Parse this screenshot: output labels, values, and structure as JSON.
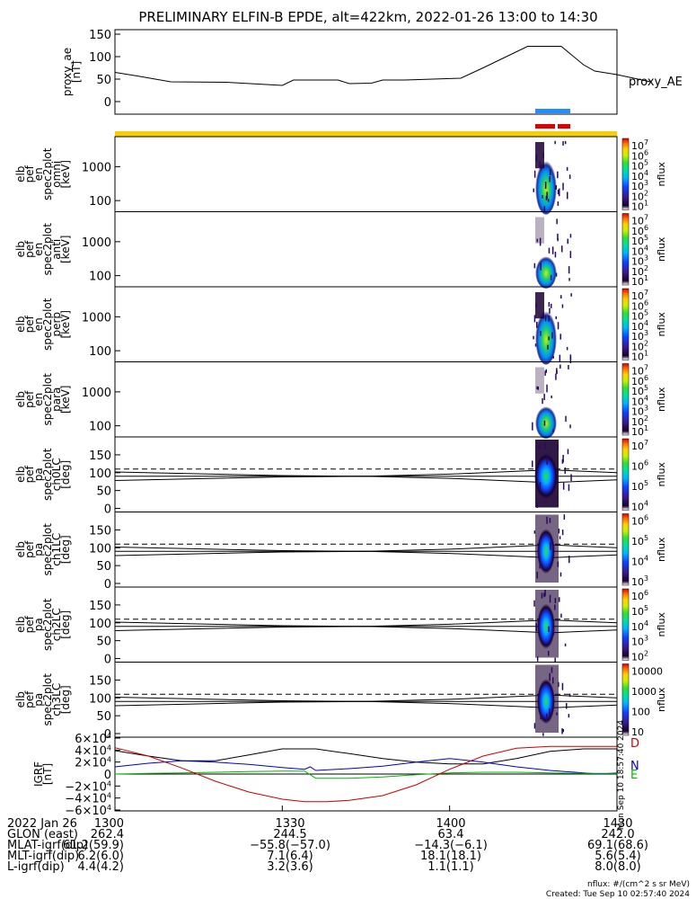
{
  "title": "PRELIMINARY ELFIN-B EPDE, alt=422km, 2022-01-26 13:00 to 14:30",
  "proxy_ae": {
    "ylabel_lines": [
      "proxy_ae",
      "[nT]"
    ],
    "yticks": [
      "150",
      "100",
      "50",
      "0"
    ],
    "legend": "proxy_AE",
    "ylim": [
      0,
      150
    ],
    "series": {
      "name": "proxy_AE",
      "t": [
        0,
        4,
        10,
        20,
        30,
        32,
        40,
        42,
        46,
        48,
        52,
        62,
        66,
        74,
        80,
        84,
        86,
        90,
        96
      ],
      "values": [
        65,
        57,
        44,
        43,
        36,
        48,
        48,
        40,
        41,
        48,
        48,
        52,
        75,
        123,
        123,
        82,
        68,
        60,
        44
      ]
    }
  },
  "bars": {
    "blue_color": "#1e90ff",
    "red_color": "#e00000",
    "yellow_color": "#f5d000"
  },
  "spectrogram_panels": [
    {
      "kind": "energy",
      "ylabel_lines": [
        "elb",
        "pef",
        "en",
        "spec2plot",
        "omni",
        "[keV]"
      ],
      "yticks": [
        "1000",
        "100"
      ],
      "cbar": {
        "ticks": [
          "10^7",
          "10^6",
          "10^5",
          "10^4",
          "10^3",
          "10^2",
          "10^1"
        ],
        "label": "nflux"
      }
    },
    {
      "kind": "energy",
      "ylabel_lines": [
        "elb",
        "pef",
        "en",
        "spec2plot",
        "anti",
        "[keV]"
      ],
      "yticks": [
        "1000",
        "100"
      ],
      "cbar": {
        "ticks": [
          "10^7",
          "10^6",
          "10^5",
          "10^4",
          "10^3",
          "10^2",
          "10^1"
        ],
        "label": "nflux"
      }
    },
    {
      "kind": "energy",
      "ylabel_lines": [
        "elb",
        "pef",
        "en",
        "spec2plot",
        "perp",
        "[keV]"
      ],
      "yticks": [
        "1000",
        "100"
      ],
      "cbar": {
        "ticks": [
          "10^7",
          "10^6",
          "10^5",
          "10^4",
          "10^3",
          "10^2",
          "10^1"
        ],
        "label": "nflux"
      }
    },
    {
      "kind": "energy",
      "ylabel_lines": [
        "elb",
        "pef",
        "en",
        "spec2plot",
        "para",
        "[keV]"
      ],
      "yticks": [
        "1000",
        "100"
      ],
      "cbar": {
        "ticks": [
          "10^7",
          "10^6",
          "10^5",
          "10^4",
          "10^3",
          "10^2",
          "10^1"
        ],
        "label": "nflux"
      }
    },
    {
      "kind": "pa",
      "ylabel_lines": [
        "elb",
        "pef",
        "pa",
        "spec2plot",
        "ch0LC",
        "[deg]"
      ],
      "yticks": [
        "150",
        "100",
        "50",
        "0"
      ],
      "cbar": {
        "ticks": [
          "10^7",
          "10^6",
          "10^5",
          "10^4"
        ],
        "label": "nflux"
      }
    },
    {
      "kind": "pa",
      "ylabel_lines": [
        "elb",
        "pef",
        "pa",
        "spec2plot",
        "ch1LC",
        "[deg]"
      ],
      "yticks": [
        "150",
        "100",
        "50",
        "0"
      ],
      "cbar": {
        "ticks": [
          "10^6",
          "10^5",
          "10^4",
          "10^3"
        ],
        "label": "nflux"
      }
    },
    {
      "kind": "pa",
      "ylabel_lines": [
        "elb",
        "pef",
        "pa",
        "spec2plot",
        "ch2LC",
        "[deg]"
      ],
      "yticks": [
        "150",
        "100",
        "50",
        "0"
      ],
      "cbar": {
        "ticks": [
          "10^6",
          "10^5",
          "10^4",
          "10^3",
          "10^2"
        ],
        "label": "nflux"
      }
    },
    {
      "kind": "pa",
      "ylabel_lines": [
        "elb",
        "pef",
        "pa",
        "spec2plot",
        "ch3LC",
        "[deg]"
      ],
      "yticks": [
        "150",
        "100",
        "50",
        "0"
      ],
      "cbar": {
        "ticks": [
          "10000",
          "1000",
          "100",
          "10"
        ],
        "label": "nflux"
      }
    }
  ],
  "igrf": {
    "ylabel_lines": [
      "IGRF",
      "[nT]"
    ],
    "yticks": [
      "6×10^4",
      "4×10^4",
      "2×10^4",
      "0",
      "−2×10^4",
      "−4×10^4",
      "−6×10^4"
    ],
    "ylim": [
      -60000,
      60000
    ],
    "side_labels": [
      "D",
      "N",
      "E"
    ],
    "stamp": "Mon Sep 10 18:57:40 2024",
    "series": [
      {
        "name": "D",
        "color": "#000000",
        "t": [
          0,
          6,
          12,
          18,
          24,
          30,
          36,
          42,
          48,
          54,
          60,
          66,
          72,
          78,
          84,
          90
        ],
        "values": [
          39000,
          30000,
          22000,
          22000,
          32000,
          42000,
          42000,
          34000,
          26000,
          20000,
          17000,
          17000,
          26000,
          38000,
          42000,
          42000
        ]
      },
      {
        "name": "N",
        "color": "#0000cc",
        "t": [
          0,
          6,
          12,
          18,
          24,
          30,
          34,
          35,
          36,
          42,
          48,
          54,
          60,
          66,
          72,
          78,
          84,
          87,
          90
        ],
        "values": [
          12000,
          18000,
          22000,
          20000,
          16000,
          11000,
          8000,
          12000,
          6000,
          9000,
          13000,
          20000,
          26000,
          20000,
          12000,
          6000,
          2000,
          0,
          2000
        ]
      },
      {
        "name": "E",
        "color": "#00bb00",
        "t": [
          0,
          6,
          12,
          18,
          24,
          30,
          34,
          36,
          42,
          48,
          54,
          60,
          66,
          72,
          78,
          84,
          90
        ],
        "values": [
          0,
          1000,
          2000,
          3000,
          4000,
          5000,
          5000,
          -7000,
          -7000,
          -5000,
          -1000,
          2000,
          3000,
          3000,
          2000,
          1000,
          1000
        ]
      },
      {
        "name": "",
        "color": "#cc0000",
        "t": [
          0,
          6,
          12,
          18,
          24,
          30,
          34,
          38,
          42,
          48,
          54,
          60,
          66,
          72,
          78,
          84,
          90
        ],
        "values": [
          44000,
          30000,
          10000,
          -12000,
          -30000,
          -42000,
          -46000,
          -46000,
          -44000,
          -36000,
          -18000,
          8000,
          30000,
          43000,
          46000,
          46000,
          46000
        ]
      }
    ]
  },
  "footer": {
    "rows": [
      {
        "label": "2022 Jan 26",
        "vals": [
          "1300",
          "1330",
          "1400",
          "1430"
        ]
      },
      {
        "label": "GLON (east)",
        "vals": [
          "262.4",
          "244.5",
          "63.4",
          "242.0"
        ]
      },
      {
        "label": "MLAT-igrf(dip)",
        "vals": [
          "61.2(59.9)",
          "−55.8(−57.0)",
          "−14.3(−6.1)",
          "69.1(68.6)"
        ]
      },
      {
        "label": "MLT-igrf(dip)",
        "vals": [
          "6.2(6.0)",
          "7.1(6.4)",
          "18.1(18.1)",
          "5.6(5.4)"
        ]
      },
      {
        "label": "L-igrf(dip)",
        "vals": [
          "4.4(4.2)",
          "3.2(3.6)",
          "1.1(1.1)",
          "8.0(8.0)"
        ]
      }
    ],
    "note1": "nflux: #/(cm^2 s sr MeV)",
    "note2": "Created: Tue Sep 10 02:57:40 2024"
  }
}
